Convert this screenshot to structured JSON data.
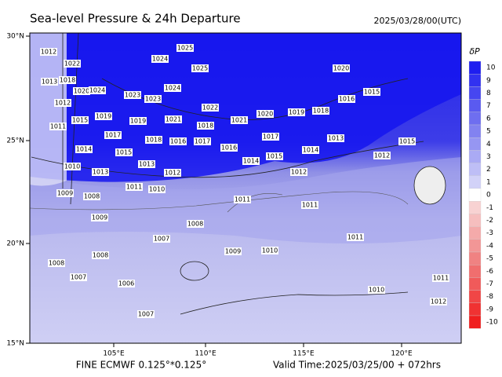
{
  "header": {
    "title": "Sea-level Pressure & 24h Departure",
    "datetime": "2025/03/28/00(UTC)"
  },
  "map": {
    "lat_labels": [
      "30°N",
      "25°N",
      "20°N",
      "15°N"
    ],
    "lon_labels": [
      "105°E",
      "110°E",
      "115°E",
      "120°E"
    ],
    "isobar_labels": [
      1012,
      1022,
      1025,
      1024,
      1025,
      1020,
      1015,
      1018,
      1020,
      1024,
      1023,
      1024,
      1023,
      1019,
      1019,
      1021,
      1022,
      1018,
      1020,
      1021,
      1019,
      1018,
      1016,
      1015,
      1013,
      1012,
      1011,
      1017,
      1018,
      1016,
      1017,
      1017,
      1014,
      1015,
      1013,
      1016,
      1015,
      1014,
      1014,
      1013,
      1015,
      1012,
      1012,
      1012,
      1013,
      1010,
      1011,
      1010,
      1009,
      1008,
      1009,
      1008,
      1007,
      1011,
      1011,
      1009,
      1010,
      1011,
      1010,
      1008,
      1008,
      1007,
      1006,
      1007,
      1011,
      1012
    ]
  },
  "colorbar": {
    "title": "δP",
    "levels": [
      10,
      9,
      8,
      7,
      6,
      5,
      4,
      3,
      2,
      1,
      0,
      -1,
      -2,
      -3,
      -4,
      -5,
      -6,
      -7,
      -8,
      -9,
      -10
    ],
    "colors": [
      "#1e1ef0",
      "#3232f0",
      "#4646f0",
      "#5a5af0",
      "#6e6ef0",
      "#8282f0",
      "#9696f2",
      "#aaaaf4",
      "#bebef6",
      "#d2d2f8",
      "#ffffff",
      "#f8d2d2",
      "#f6bebe",
      "#f4aaaa",
      "#f29696",
      "#f08282",
      "#f06e6e",
      "#f05a5a",
      "#f04646",
      "#f03232",
      "#f01e1e"
    ]
  },
  "footer": {
    "model": "FINE ECMWF 0.125°*0.125°",
    "valid": "Valid Time:2025/03/25/00 + 072hrs"
  }
}
